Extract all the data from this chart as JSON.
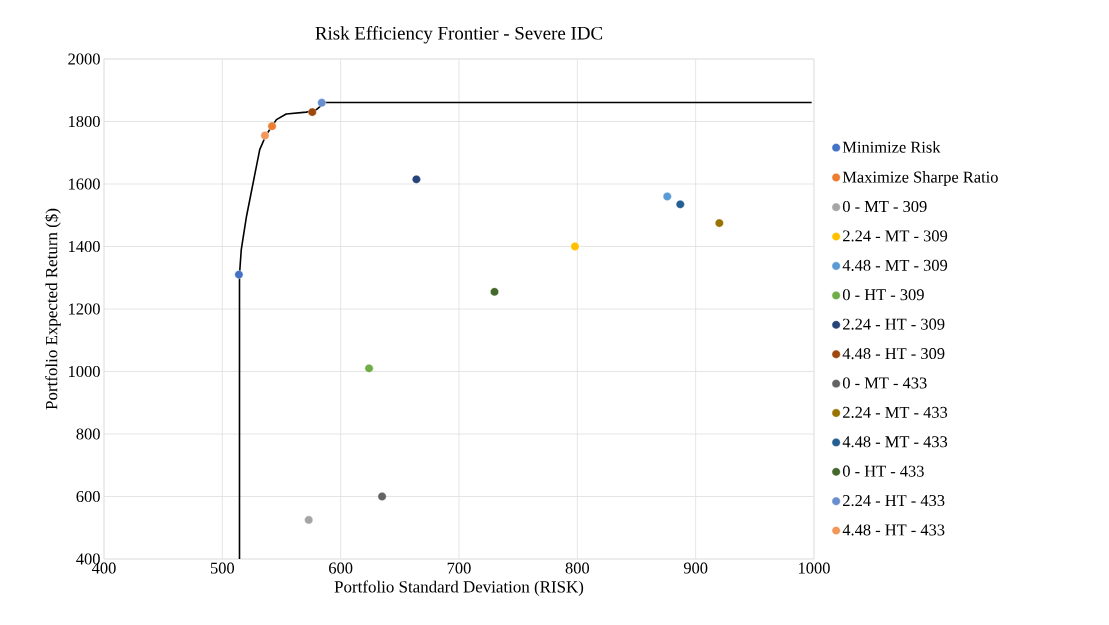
{
  "chart_data": {
    "type": "scatter",
    "title": "Risk Efficiency Frontier - Severe IDC",
    "xlabel": "Portfolio Standard Deviation (RISK)",
    "ylabel": "Portfolio Expected Return ($)",
    "xlim": [
      400,
      1000
    ],
    "ylim": [
      400,
      2000
    ],
    "xticks": [
      400,
      500,
      600,
      700,
      800,
      900,
      1000
    ],
    "yticks": [
      400,
      600,
      800,
      1000,
      1200,
      1400,
      1600,
      1800,
      2000
    ],
    "grid": true,
    "legend": "right",
    "marker": "circle",
    "series": [
      {
        "type": "line",
        "color": "#000000",
        "marker": "none",
        "x": [
          514.5,
          514.5,
          516,
          520.4,
          526,
          531.6,
          537,
          545.7,
          554,
          571,
          579.5,
          586.6,
          998
        ],
        "values": [
          400,
          1310,
          1390,
          1496,
          1603,
          1710,
          1757,
          1806,
          1824,
          1830,
          1838,
          1861,
          1861
        ]
      },
      {
        "name": "Minimize Risk",
        "color": "#4472c4",
        "x": [
          514
        ],
        "values": [
          1310
        ]
      },
      {
        "name": "Maximize Sharpe Ratio",
        "color": "#ed7d31",
        "x": [
          542
        ],
        "values": [
          1785
        ]
      },
      {
        "name": "0 - MT - 309",
        "color": "#a5a5a5",
        "x": [
          573
        ],
        "values": [
          525
        ]
      },
      {
        "name": "2.24 - MT - 309",
        "color": "#ffc000",
        "x": [
          798
        ],
        "values": [
          1400
        ]
      },
      {
        "name": "4.48 - MT - 309",
        "color": "#5b9bd5",
        "x": [
          876
        ],
        "values": [
          1560
        ]
      },
      {
        "name": "0 - HT - 309",
        "color": "#70ad47",
        "x": [
          624
        ],
        "values": [
          1010
        ]
      },
      {
        "name": "2.24 - HT - 309",
        "color": "#264478",
        "x": [
          664
        ],
        "values": [
          1615
        ]
      },
      {
        "name": "4.48 - HT - 309",
        "color": "#9e480e",
        "x": [
          576
        ],
        "values": [
          1830
        ]
      },
      {
        "name": "0 - MT - 433",
        "color": "#636363",
        "x": [
          635
        ],
        "values": [
          600
        ]
      },
      {
        "name": "2.24 - MT - 433",
        "color": "#997300",
        "x": [
          920
        ],
        "values": [
          1475
        ]
      },
      {
        "name": "4.48 - MT - 433",
        "color": "#255e91",
        "x": [
          887
        ],
        "values": [
          1535
        ]
      },
      {
        "name": "0 - HT - 433",
        "color": "#43682b",
        "x": [
          730
        ],
        "values": [
          1255
        ]
      },
      {
        "name": "2.24 - HT - 433",
        "color": "#698ed0",
        "x": [
          584
        ],
        "values": [
          1860
        ]
      },
      {
        "name": "4.48 - HT - 433",
        "color": "#f1975a",
        "x": [
          536
        ],
        "values": [
          1755
        ]
      }
    ]
  }
}
